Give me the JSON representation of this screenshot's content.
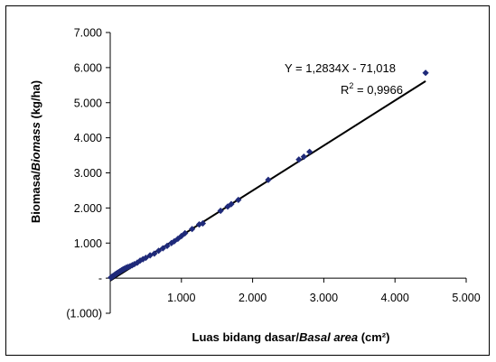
{
  "chart_data": {
    "type": "scatter",
    "xlabel_parts": [
      "Luas bidang dasar/",
      "Basal area",
      " (cm²)"
    ],
    "ylabel_parts": [
      "Biomasa/",
      "Biomass",
      " (kg/ha)"
    ],
    "xlim": [
      0,
      5000
    ],
    "ylim": [
      -1000,
      7000
    ],
    "x_ticks": [
      {
        "value": 1000,
        "label": "1.000"
      },
      {
        "value": 2000,
        "label": "2.000"
      },
      {
        "value": 3000,
        "label": "3.000"
      },
      {
        "value": 4000,
        "label": "4.000"
      },
      {
        "value": 5000,
        "label": "5.000"
      }
    ],
    "y_ticks": [
      {
        "value": 7000,
        "label": "7.000"
      },
      {
        "value": 6000,
        "label": "6.000"
      },
      {
        "value": 5000,
        "label": "5.000"
      },
      {
        "value": 4000,
        "label": "4.000"
      },
      {
        "value": 3000,
        "label": "3.000"
      },
      {
        "value": 2000,
        "label": "2.000"
      },
      {
        "value": 1000,
        "label": "1.000"
      },
      {
        "value": 0,
        "label": "-"
      },
      {
        "value": -1000,
        "label": "(1.000)"
      }
    ],
    "marker_color": "#1f2a7a",
    "series": [
      {
        "x": [
          10,
          20,
          35,
          50,
          65,
          80,
          100,
          120,
          140,
          160,
          180,
          200,
          225,
          250,
          280,
          310,
          340,
          380,
          420,
          460,
          500,
          560,
          620,
          680,
          740,
          800,
          860,
          900,
          950,
          1000,
          1050,
          1150,
          1250,
          1300,
          1550,
          1650,
          1700,
          1800,
          2220,
          2650,
          2720,
          2800,
          4430
        ],
        "y": [
          20,
          35,
          55,
          75,
          100,
          120,
          150,
          175,
          200,
          225,
          250,
          270,
          300,
          320,
          340,
          370,
          400,
          440,
          500,
          540,
          580,
          650,
          700,
          780,
          850,
          920,
          1000,
          1050,
          1120,
          1200,
          1280,
          1400,
          1530,
          1560,
          1920,
          2040,
          2110,
          2230,
          2800,
          3380,
          3460,
          3600,
          5850
        ]
      }
    ],
    "trendline": {
      "slope": 1.2834,
      "intercept": -71.018,
      "x_range": [
        0,
        4430
      ]
    },
    "annotation": {
      "equation": "Y = 1,2834X - 71,018",
      "r2_prefix": "R",
      "r2_sup": "2",
      "r2_value": " = 0,9966"
    }
  }
}
